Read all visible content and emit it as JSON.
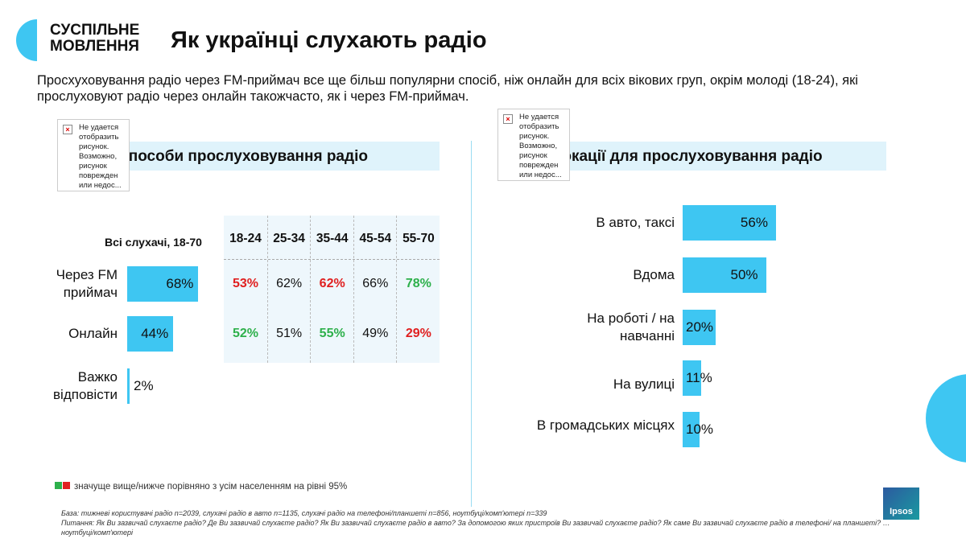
{
  "brand": {
    "line1": "СУСПІЛЬНЕ",
    "line2": "МОВЛЕННЯ"
  },
  "title": "Як українці слухають радіо",
  "subtitle": "Просхуховування радіо через FM-приймач все ще більш популярни спосіб, ніж онлайн для всіх вікових груп, окрім молоді (18-24), які прослуховуют радіо через онлайн такожчасто, як і через FM-приймач.",
  "broken_image": {
    "text": "Не удается отобразить рисунок. Возможно, рисунок поврежден или недос..."
  },
  "colors": {
    "accent": "#3ec6f2",
    "higher": "#2db04b",
    "lower": "#e02020"
  },
  "left": {
    "title": "Способи прослуховування радіо",
    "all_label": "Всі слухачі, 18-70",
    "rows": [
      {
        "label": "Через FM приймач",
        "value": 68,
        "text": "68%"
      },
      {
        "label": "Онлайн",
        "value": 44,
        "text": "44%"
      },
      {
        "label": "Важко відповісти",
        "value": 2,
        "text": "2%"
      }
    ],
    "age_table": {
      "headers": [
        "18-24",
        "25-34",
        "35-44",
        "45-54",
        "55-70"
      ],
      "rows": [
        [
          {
            "t": "53%",
            "s": "lower"
          },
          {
            "t": "62%",
            "s": ""
          },
          {
            "t": "62%",
            "s": "lower"
          },
          {
            "t": "66%",
            "s": ""
          },
          {
            "t": "78%",
            "s": "higher"
          }
        ],
        [
          {
            "t": "52%",
            "s": "higher"
          },
          {
            "t": "51%",
            "s": ""
          },
          {
            "t": "55%",
            "s": "higher"
          },
          {
            "t": "49%",
            "s": ""
          },
          {
            "t": "29%",
            "s": "lower"
          }
        ]
      ]
    }
  },
  "right": {
    "title": "Локації для прослуховування радіо",
    "rows": [
      {
        "label": "В авто, таксі",
        "value": 56,
        "text": "56%"
      },
      {
        "label": "Вдома",
        "value": 50,
        "text": "50%"
      },
      {
        "label": "На роботі / на навчанні",
        "value": 20,
        "text": "20%"
      },
      {
        "label": "На вулиці",
        "value": 11,
        "text": "11%"
      },
      {
        "label": "В громадських місцях",
        "value": 10,
        "text": "10%"
      }
    ]
  },
  "legend": "значуще вище/нижче порівняно з усім населенням на рівні 95%",
  "footnote": {
    "base": "База: тижневі користувачі радіо n=2039, слухачі радіо в авто n=1135, слухачі радіо на телефоні/планшеті n=856, ноутбуці/комп'ютері n=339",
    "question": "Питання: Як Ви зазвичай слухаєте радіо? Де Ви зазвичай слухаєте радіо? Як Ви зазвичай слухаєте радіо в авто? За допомогою яких пристроїв Ви зазвичай слухаєте радіо? Як саме Ви зазвичай слухаєте радіо в телефоні/ на планшеті? … ноутбуці/комп'ютері"
  },
  "ipsos": "Ipsos"
}
